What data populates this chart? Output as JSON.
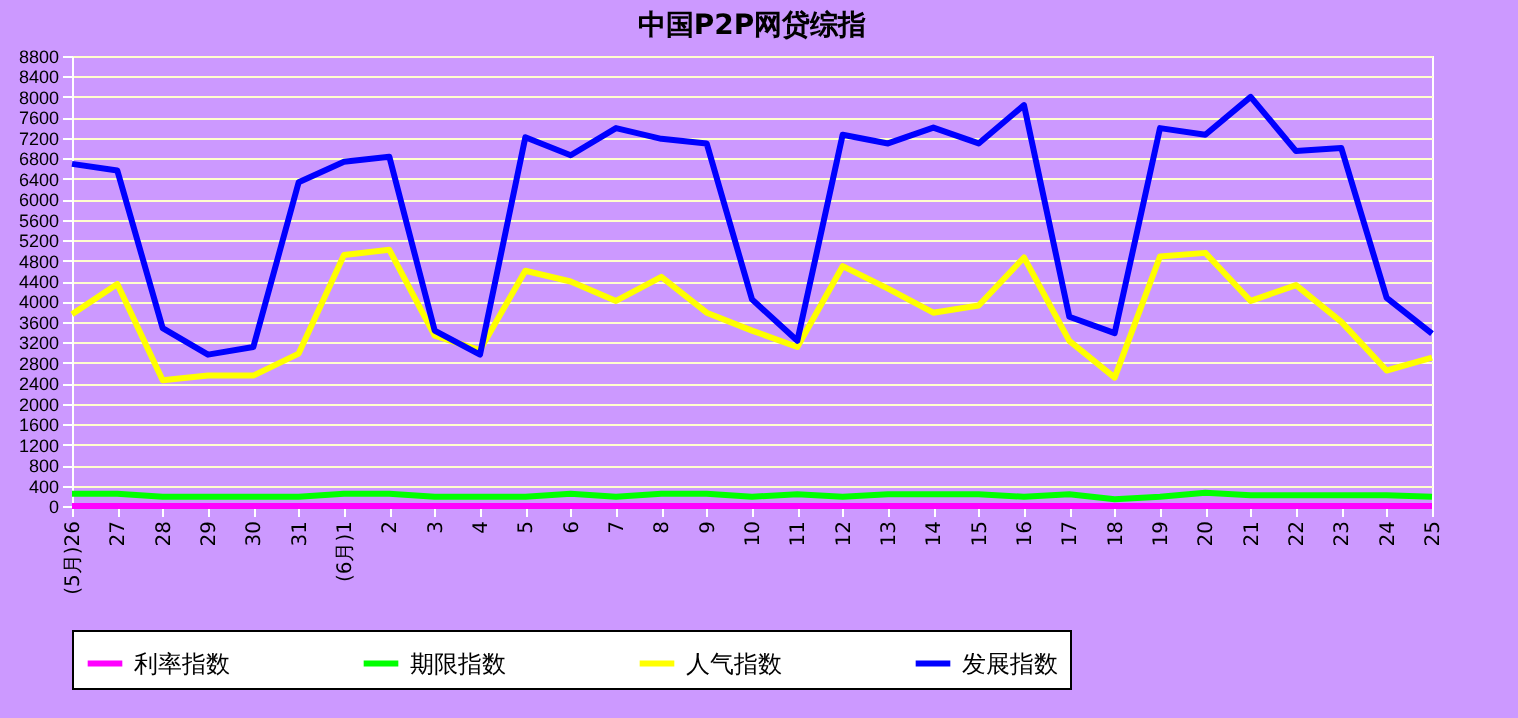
{
  "chart_data": {
    "type": "line",
    "title": "中国P2P网贷综指",
    "categories": [
      "(5月)26",
      "27",
      "28",
      "29",
      "30",
      "31",
      "(6月)1",
      "2",
      "3",
      "4",
      "5",
      "6",
      "7",
      "8",
      "9",
      "10",
      "11",
      "12",
      "13",
      "14",
      "15",
      "16",
      "17",
      "18",
      "19",
      "20",
      "21",
      "22",
      "23",
      "24",
      "25"
    ],
    "series": [
      {
        "name": "利率指数",
        "color": "#ff00ff",
        "values": [
          0,
          0,
          0,
          0,
          0,
          0,
          0,
          0,
          0,
          0,
          0,
          0,
          0,
          0,
          0,
          0,
          0,
          0,
          0,
          0,
          0,
          0,
          0,
          0,
          0,
          0,
          0,
          0,
          0,
          0,
          0
        ]
      },
      {
        "name": "期限指数",
        "color": "#00ff00",
        "values": [
          240,
          240,
          180,
          180,
          180,
          180,
          240,
          240,
          180,
          180,
          180,
          240,
          180,
          240,
          240,
          180,
          230,
          180,
          230,
          230,
          230,
          180,
          230,
          130,
          180,
          260,
          210,
          210,
          210,
          210,
          180
        ]
      },
      {
        "name": "人气指数",
        "color": "#ffff00",
        "values": [
          3750,
          4340,
          2460,
          2550,
          2550,
          2980,
          4910,
          5010,
          3330,
          3050,
          4600,
          4390,
          4010,
          4480,
          3780,
          3430,
          3110,
          4690,
          4250,
          3780,
          3920,
          4860,
          3230,
          2510,
          4880,
          4950,
          4010,
          4320,
          3600,
          2650,
          2900
        ]
      },
      {
        "name": "发展指数",
        "color": "#0000ff",
        "values": [
          6690,
          6560,
          3480,
          2960,
          3110,
          6330,
          6730,
          6830,
          3430,
          2960,
          7210,
          6860,
          7390,
          7180,
          7090,
          4040,
          3230,
          7260,
          7090,
          7400,
          7090,
          7840,
          3700,
          3380,
          7390,
          7260,
          8000,
          6940,
          7000,
          4070,
          3370
        ]
      }
    ],
    "ylim": [
      0,
      8800
    ],
    "yticks": [
      0,
      400,
      800,
      1200,
      1600,
      2000,
      2400,
      2800,
      3200,
      3600,
      4000,
      4400,
      4800,
      5200,
      5600,
      6000,
      6400,
      6800,
      7200,
      7600,
      8000,
      8400,
      8800
    ],
    "grid": "y",
    "legend": "bottom",
    "marker": "none",
    "line_style": "solid"
  }
}
